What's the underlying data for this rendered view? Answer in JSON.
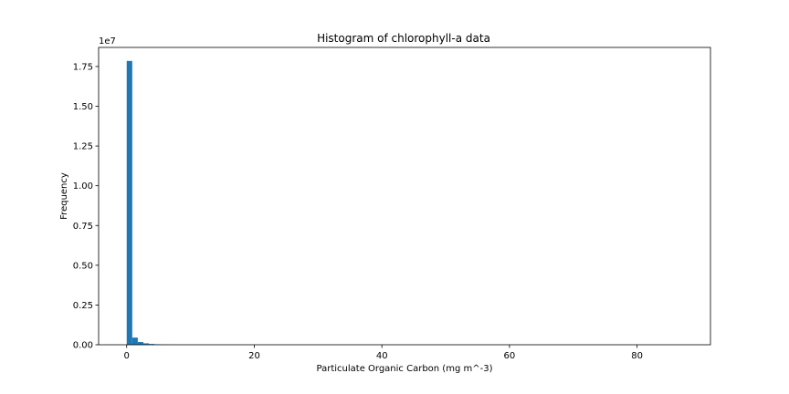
{
  "chart_data": {
    "type": "bar",
    "title": "Histogram of chlorophyll-a data",
    "xlabel": "Particulate Organic Carbon (mg m^-3)",
    "ylabel": "Frequency",
    "y_offset_text": "1e7",
    "xlim": [
      -4.4,
      91.5
    ],
    "ylim": [
      0,
      18700000.0
    ],
    "xticks": [
      0,
      20,
      40,
      60,
      80
    ],
    "yticks": [
      0.0,
      0.25,
      0.5,
      0.75,
      1.0,
      1.25,
      1.5,
      1.75
    ],
    "ytick_labels": [
      "0.00",
      "0.25",
      "0.50",
      "0.75",
      "1.00",
      "1.25",
      "1.50",
      "1.75"
    ],
    "grid": false,
    "color": "#1f77b4",
    "bin_width": 0.87,
    "bins": [
      {
        "x0": 0.0,
        "count": 17850000
      },
      {
        "x0": 0.87,
        "count": 450000
      },
      {
        "x0": 1.74,
        "count": 170000
      },
      {
        "x0": 2.61,
        "count": 90000
      },
      {
        "x0": 3.48,
        "count": 50000
      },
      {
        "x0": 4.35,
        "count": 30000
      },
      {
        "x0": 5.22,
        "count": 12000
      },
      {
        "x0": 6.09,
        "count": 6000
      },
      {
        "x0": 6.96,
        "count": 3000
      }
    ]
  }
}
